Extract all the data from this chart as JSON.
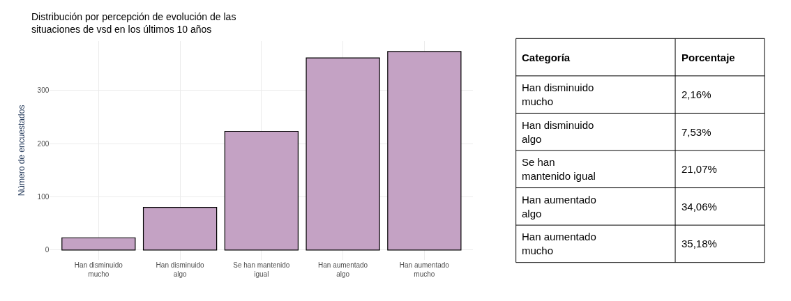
{
  "chart_data": [
    {
      "type": "bar",
      "title": "Distribución por percepción de evolución de las\nsituaciones de vsd en los últimos 10 años",
      "ylabel": "Número de encuestados",
      "categories": [
        "Han disminuido mucho",
        "Han disminuido algo",
        "Se han mantenido igual",
        "Han aumentado algo",
        "Han aumentado mucho"
      ],
      "values": [
        23,
        80,
        223,
        361,
        373
      ],
      "color": "#c4a2c4",
      "ylim": [
        -18,
        392
      ],
      "yticks": [
        0,
        100,
        200,
        300
      ],
      "grid": true
    },
    {
      "type": "other",
      "annotations": [
        "Categoría",
        "Porcentaje"
      ],
      "categories": [
        "Han disminuido mucho",
        "Han disminuido algo",
        "Se han mantenido igual",
        "Han aumentado algo",
        "Han aumentado mucho"
      ],
      "value_labels": [
        "2,16%",
        "7,53%",
        "21,07%",
        "34,06%",
        "35,18%"
      ]
    }
  ]
}
